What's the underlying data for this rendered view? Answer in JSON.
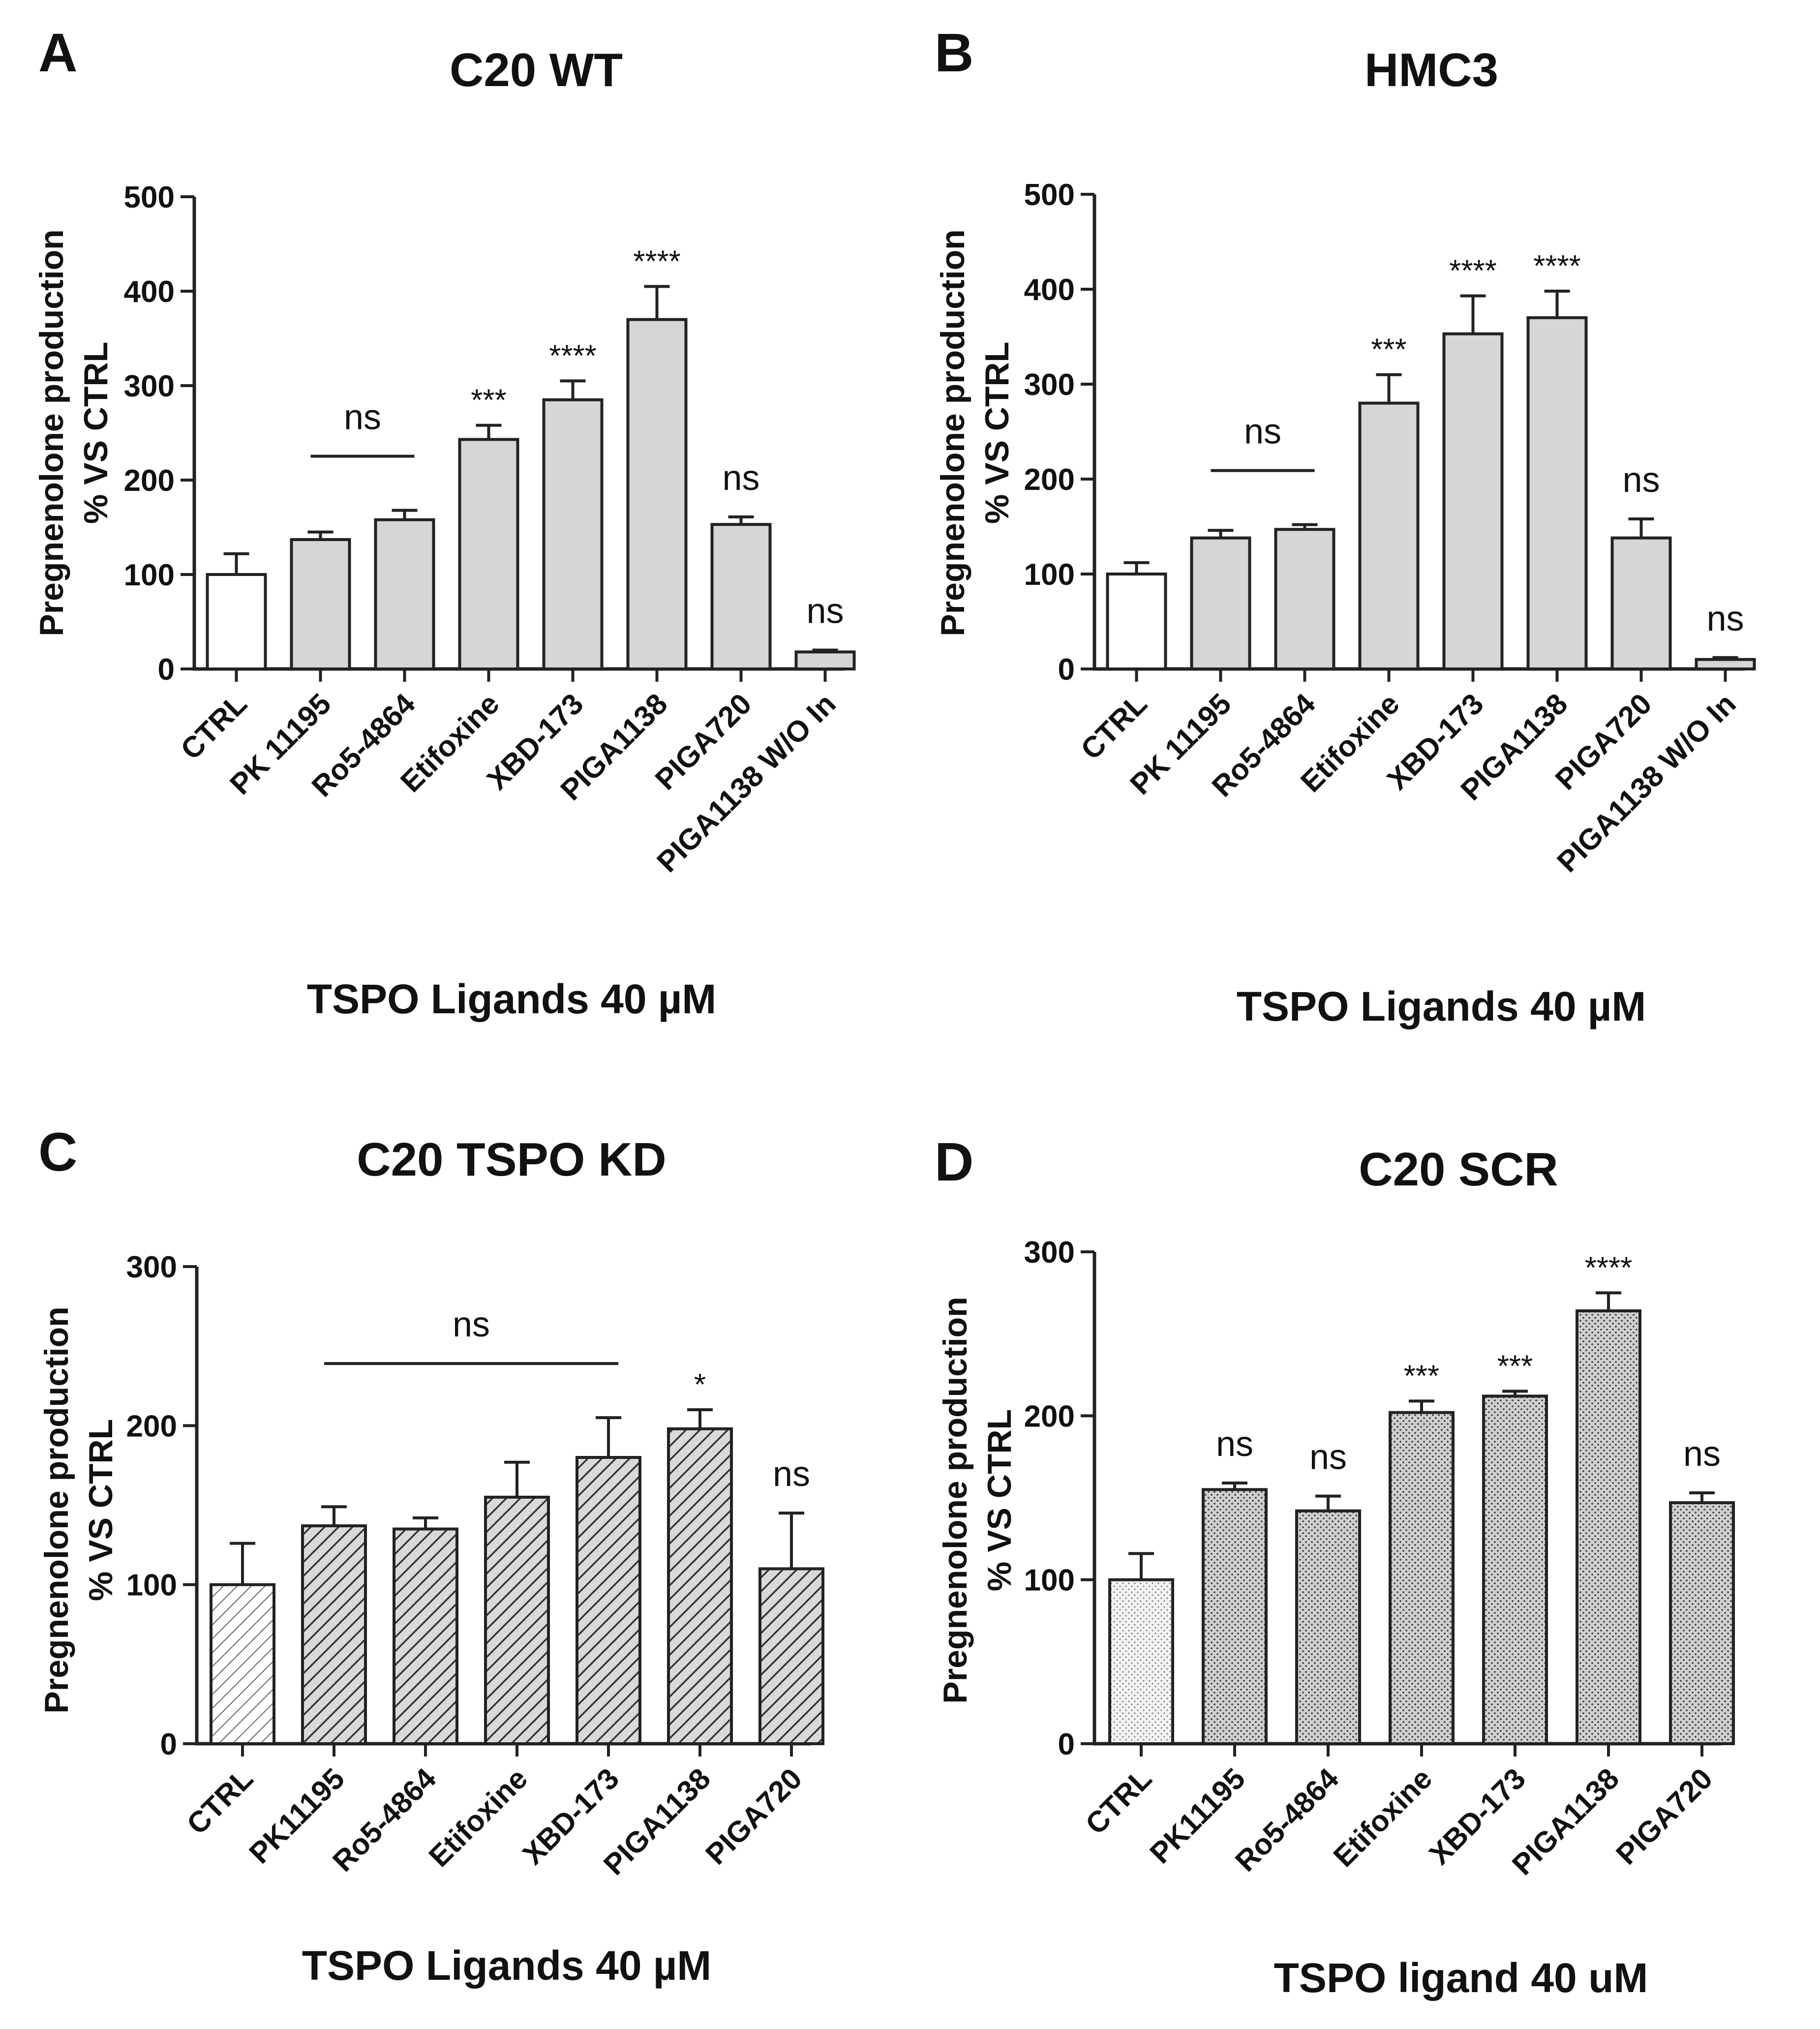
{
  "chart_data": [
    {
      "panel": "A",
      "type": "bar",
      "title": "C20 WT",
      "xlabel": "TSPO Ligands 40 µM",
      "ylabel": [
        "Pregnenolone production",
        "% VS CTRL"
      ],
      "ylim": [
        0,
        500
      ],
      "yticks": [
        0,
        100,
        200,
        300,
        400,
        500
      ],
      "categories": [
        "CTRL",
        "PK 11195",
        "Ro5-4864",
        "Etifoxine",
        "XBD-173",
        "PIGA1138",
        "PIGA720",
        "PIGA1138 W/O In"
      ],
      "values": [
        100,
        137,
        158,
        243,
        285,
        370,
        153,
        18
      ],
      "errors": [
        22,
        8,
        10,
        15,
        20,
        35,
        8,
        2
      ],
      "fills": [
        "white",
        "gray",
        "gray",
        "gray",
        "gray",
        "gray",
        "gray",
        "gray"
      ],
      "annotations": [
        "",
        "",
        "",
        "***",
        "****",
        "****",
        "ns",
        "ns"
      ],
      "group_annotation": {
        "label": "ns",
        "from": 1,
        "to": 2
      }
    },
    {
      "panel": "B",
      "type": "bar",
      "title": "HMC3",
      "xlabel": "TSPO Ligands 40 µM",
      "ylabel": [
        "Pregnenolone production",
        "% VS CTRL"
      ],
      "ylim": [
        0,
        500
      ],
      "yticks": [
        0,
        100,
        200,
        300,
        400,
        500
      ],
      "categories": [
        "CTRL",
        "PK 11195",
        "Ro5-4864",
        "Etifoxine",
        "XBD-173",
        "PIGA1138",
        "PIGA720",
        "PIGA1138 W/O In"
      ],
      "values": [
        100,
        138,
        147,
        280,
        353,
        370,
        138,
        10
      ],
      "errors": [
        12,
        8,
        5,
        30,
        40,
        28,
        20,
        2
      ],
      "fills": [
        "white",
        "gray",
        "gray",
        "gray",
        "gray",
        "gray",
        "gray",
        "gray"
      ],
      "annotations": [
        "",
        "",
        "",
        "***",
        "****",
        "****",
        "ns",
        "ns"
      ],
      "group_annotation": {
        "label": "ns",
        "from": 1,
        "to": 2
      }
    },
    {
      "panel": "C",
      "type": "bar",
      "title": "C20 TSPO KD",
      "xlabel": "TSPO Ligands 40 µM",
      "ylabel": [
        "Pregnenolone production",
        "% VS CTRL"
      ],
      "ylim": [
        0,
        300
      ],
      "yticks": [
        0,
        100,
        200,
        300
      ],
      "categories": [
        "CTRL",
        "PK11195",
        "Ro5-4864",
        "Etifoxine",
        "XBD-173",
        "PIGA1138",
        "PIGA720"
      ],
      "values": [
        100,
        137,
        135,
        155,
        180,
        198,
        110
      ],
      "errors": [
        26,
        12,
        7,
        22,
        25,
        12,
        35
      ],
      "fills": [
        "hatch-light",
        "hatch",
        "hatch",
        "hatch",
        "hatch",
        "hatch",
        "hatch"
      ],
      "annotations": [
        "",
        "",
        "",
        "",
        "",
        "*",
        "ns"
      ],
      "group_annotation": {
        "label": "ns",
        "from": 1,
        "to": 4
      }
    },
    {
      "panel": "D",
      "type": "bar",
      "title": "C20 SCR",
      "xlabel": "TSPO ligand 40 uM",
      "ylabel": [
        "Pregnenolone production",
        "% VS CTRL"
      ],
      "ylim": [
        0,
        300
      ],
      "yticks": [
        0,
        100,
        200,
        300
      ],
      "categories": [
        "CTRL",
        "PK11195",
        "Ro5-4864",
        "Etifoxine",
        "XBD-173",
        "PIGA1138",
        "PIGA720"
      ],
      "values": [
        100,
        155,
        142,
        202,
        212,
        264,
        147
      ],
      "errors": [
        16,
        4,
        9,
        7,
        3,
        11,
        6
      ],
      "fills": [
        "dots-light",
        "dots",
        "dots",
        "dots",
        "dots",
        "dots",
        "dots"
      ],
      "annotations": [
        "",
        "ns",
        "ns",
        "***",
        "***",
        "****",
        "ns"
      ],
      "group_annotation": null
    }
  ]
}
